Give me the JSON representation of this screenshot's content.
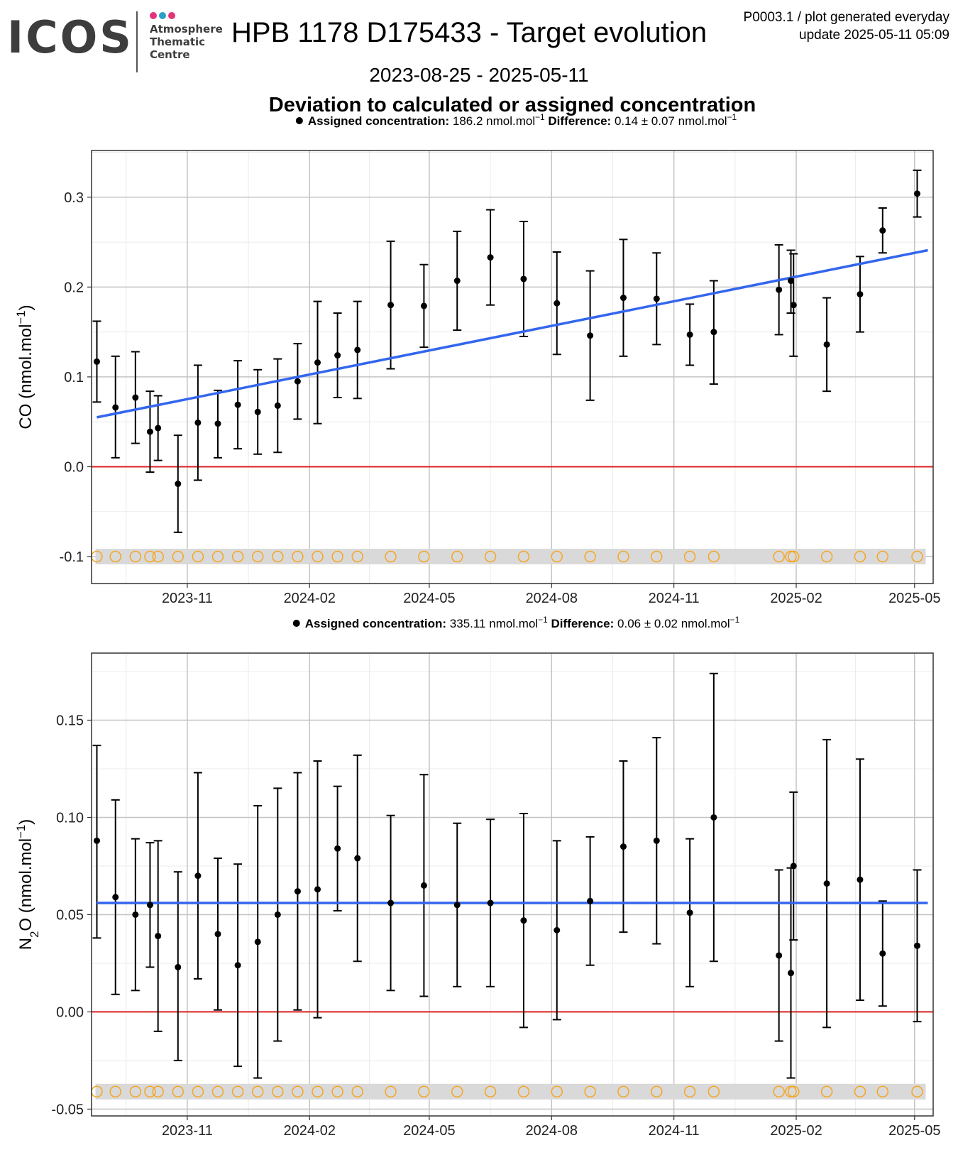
{
  "header": {
    "logo_text": "ICOS",
    "logo_sub": [
      "Atmosphere",
      "Thematic",
      "Centre"
    ],
    "logo_dot_colors": [
      "#e4337a",
      "#2b9ec9",
      "#e4337a"
    ],
    "title": "HPB 1178 D175433 - Target evolution",
    "meta_line1": "P0003.1 / plot generated everyday",
    "meta_line2": "update  2025-05-11 05:09",
    "date_range": "2023-08-25 - 2025-05-11",
    "subtitle": "Deviation to calculated or assigned concentration"
  },
  "colors": {
    "trend": "#3366ee",
    "zero_line": "#dd2222",
    "point": "#000000",
    "flag_circle": "#f5a623",
    "flag_band": "#d9d9d9",
    "grid_major": "#c4c4c4",
    "grid_minor": "#ebebeb"
  },
  "chart_data": [
    {
      "type": "scatter",
      "ylabel": "CO (nmol.mol⁻¹)",
      "legend": {
        "assigned_label": "Assigned concentration:",
        "assigned_value": "186.2 nmol.mol⁻¹",
        "difference_label": "Difference:",
        "difference_value": "0.14 ± 0.07 nmol.mol⁻¹"
      },
      "x_ticks": [
        "2023-11",
        "2024-02",
        "2024-05",
        "2024-08",
        "2024-11",
        "2025-02",
        "2025-05"
      ],
      "xlim": [
        "2023-08-21",
        "2025-05-15"
      ],
      "ylim": [
        -0.13,
        0.352
      ],
      "y_ticks": [
        0.3,
        0.2,
        0.1,
        0.0,
        -0.1
      ],
      "y_tick_labels": [
        "0.3",
        "0.2",
        "0.1",
        "0.0",
        "-0.1"
      ],
      "trend": {
        "x": [
          "2023-08-25",
          "2025-05-11"
        ],
        "y": [
          0.055,
          0.241
        ]
      },
      "flag_level": -0.1,
      "points": [
        {
          "x": "2023-08-25",
          "y": 0.117,
          "ylo": 0.072,
          "yhi": 0.162
        },
        {
          "x": "2023-09-08",
          "y": 0.066,
          "ylo": 0.01,
          "yhi": 0.123
        },
        {
          "x": "2023-09-23",
          "y": 0.077,
          "ylo": 0.026,
          "yhi": 0.128
        },
        {
          "x": "2023-10-04",
          "y": 0.039,
          "ylo": -0.006,
          "yhi": 0.084
        },
        {
          "x": "2023-10-10",
          "y": 0.043,
          "ylo": 0.007,
          "yhi": 0.079
        },
        {
          "x": "2023-10-25",
          "y": -0.019,
          "ylo": -0.073,
          "yhi": 0.035
        },
        {
          "x": "2023-11-09",
          "y": 0.049,
          "ylo": -0.015,
          "yhi": 0.113
        },
        {
          "x": "2023-11-24",
          "y": 0.048,
          "ylo": 0.01,
          "yhi": 0.085
        },
        {
          "x": "2023-12-09",
          "y": 0.069,
          "ylo": 0.02,
          "yhi": 0.118
        },
        {
          "x": "2023-12-24",
          "y": 0.061,
          "ylo": 0.014,
          "yhi": 0.108
        },
        {
          "x": "2024-01-08",
          "y": 0.068,
          "ylo": 0.016,
          "yhi": 0.12
        },
        {
          "x": "2024-01-23",
          "y": 0.095,
          "ylo": 0.053,
          "yhi": 0.137
        },
        {
          "x": "2024-02-07",
          "y": 0.116,
          "ylo": 0.048,
          "yhi": 0.184
        },
        {
          "x": "2024-02-22",
          "y": 0.124,
          "ylo": 0.077,
          "yhi": 0.171
        },
        {
          "x": "2024-03-08",
          "y": 0.13,
          "ylo": 0.076,
          "yhi": 0.184
        },
        {
          "x": "2024-04-02",
          "y": 0.18,
          "ylo": 0.109,
          "yhi": 0.251
        },
        {
          "x": "2024-04-27",
          "y": 0.179,
          "ylo": 0.133,
          "yhi": 0.225
        },
        {
          "x": "2024-05-22",
          "y": 0.207,
          "ylo": 0.152,
          "yhi": 0.262
        },
        {
          "x": "2024-06-16",
          "y": 0.233,
          "ylo": 0.18,
          "yhi": 0.286
        },
        {
          "x": "2024-07-11",
          "y": 0.209,
          "ylo": 0.145,
          "yhi": 0.273
        },
        {
          "x": "2024-08-05",
          "y": 0.182,
          "ylo": 0.125,
          "yhi": 0.239
        },
        {
          "x": "2024-08-30",
          "y": 0.146,
          "ylo": 0.074,
          "yhi": 0.218
        },
        {
          "x": "2024-09-24",
          "y": 0.188,
          "ylo": 0.123,
          "yhi": 0.253
        },
        {
          "x": "2024-10-19",
          "y": 0.187,
          "ylo": 0.136,
          "yhi": 0.238
        },
        {
          "x": "2024-11-13",
          "y": 0.147,
          "ylo": 0.113,
          "yhi": 0.181
        },
        {
          "x": "2024-12-01",
          "y": 0.15,
          "ylo": 0.092,
          "yhi": 0.207
        },
        {
          "x": "2025-01-19",
          "y": 0.197,
          "ylo": 0.147,
          "yhi": 0.247
        },
        {
          "x": "2025-01-28",
          "y": 0.207,
          "ylo": 0.171,
          "yhi": 0.241
        },
        {
          "x": "2025-01-30",
          "y": 0.18,
          "ylo": 0.123,
          "yhi": 0.237
        },
        {
          "x": "2025-02-24",
          "y": 0.136,
          "ylo": 0.084,
          "yhi": 0.188
        },
        {
          "x": "2025-03-21",
          "y": 0.192,
          "ylo": 0.15,
          "yhi": 0.234
        },
        {
          "x": "2025-04-07",
          "y": 0.263,
          "ylo": 0.238,
          "yhi": 0.288
        },
        {
          "x": "2025-05-03",
          "y": 0.304,
          "ylo": 0.278,
          "yhi": 0.33
        }
      ]
    },
    {
      "type": "scatter",
      "ylabel": "N₂O (nmol.mol⁻¹)",
      "legend": {
        "assigned_label": "Assigned concentration:",
        "assigned_value": "335.11 nmol.mol⁻¹",
        "difference_label": "Difference:",
        "difference_value": "0.06 ± 0.02 nmol.mol⁻¹"
      },
      "x_ticks": [
        "2023-11",
        "2024-02",
        "2024-05",
        "2024-08",
        "2024-11",
        "2025-02",
        "2025-05"
      ],
      "xlim": [
        "2023-08-21",
        "2025-05-15"
      ],
      "ylim": [
        -0.0535,
        0.1845
      ],
      "y_ticks": [
        0.15,
        0.1,
        0.05,
        0.0,
        -0.05
      ],
      "y_tick_labels": [
        "0.15",
        "0.10",
        "0.05",
        "0.00",
        "-0.05"
      ],
      "trend": {
        "x": [
          "2023-08-25",
          "2025-05-11"
        ],
        "y": [
          0.056,
          0.056
        ]
      },
      "flag_level": -0.041,
      "points": [
        {
          "x": "2023-08-25",
          "y": 0.088,
          "ylo": 0.038,
          "yhi": 0.137
        },
        {
          "x": "2023-09-08",
          "y": 0.059,
          "ylo": 0.009,
          "yhi": 0.109
        },
        {
          "x": "2023-09-23",
          "y": 0.05,
          "ylo": 0.011,
          "yhi": 0.089
        },
        {
          "x": "2023-10-04",
          "y": 0.055,
          "ylo": 0.023,
          "yhi": 0.087
        },
        {
          "x": "2023-10-10",
          "y": 0.039,
          "ylo": -0.01,
          "yhi": 0.088
        },
        {
          "x": "2023-10-25",
          "y": 0.023,
          "ylo": -0.025,
          "yhi": 0.072
        },
        {
          "x": "2023-11-09",
          "y": 0.07,
          "ylo": 0.017,
          "yhi": 0.123
        },
        {
          "x": "2023-11-24",
          "y": 0.04,
          "ylo": 0.001,
          "yhi": 0.079
        },
        {
          "x": "2023-12-09",
          "y": 0.024,
          "ylo": -0.028,
          "yhi": 0.076
        },
        {
          "x": "2023-12-24",
          "y": 0.036,
          "ylo": -0.034,
          "yhi": 0.106
        },
        {
          "x": "2024-01-08",
          "y": 0.05,
          "ylo": -0.015,
          "yhi": 0.115
        },
        {
          "x": "2024-01-23",
          "y": 0.062,
          "ylo": 0.001,
          "yhi": 0.123
        },
        {
          "x": "2024-02-07",
          "y": 0.063,
          "ylo": -0.003,
          "yhi": 0.129
        },
        {
          "x": "2024-02-22",
          "y": 0.084,
          "ylo": 0.052,
          "yhi": 0.116
        },
        {
          "x": "2024-03-08",
          "y": 0.079,
          "ylo": 0.026,
          "yhi": 0.132
        },
        {
          "x": "2024-04-02",
          "y": 0.056,
          "ylo": 0.011,
          "yhi": 0.101
        },
        {
          "x": "2024-04-27",
          "y": 0.065,
          "ylo": 0.008,
          "yhi": 0.122
        },
        {
          "x": "2024-05-22",
          "y": 0.055,
          "ylo": 0.013,
          "yhi": 0.097
        },
        {
          "x": "2024-06-16",
          "y": 0.056,
          "ylo": 0.013,
          "yhi": 0.099
        },
        {
          "x": "2024-07-11",
          "y": 0.047,
          "ylo": -0.008,
          "yhi": 0.102
        },
        {
          "x": "2024-08-05",
          "y": 0.042,
          "ylo": -0.004,
          "yhi": 0.088
        },
        {
          "x": "2024-08-30",
          "y": 0.057,
          "ylo": 0.024,
          "yhi": 0.09
        },
        {
          "x": "2024-09-24",
          "y": 0.085,
          "ylo": 0.041,
          "yhi": 0.129
        },
        {
          "x": "2024-10-19",
          "y": 0.088,
          "ylo": 0.035,
          "yhi": 0.141
        },
        {
          "x": "2024-11-13",
          "y": 0.051,
          "ylo": 0.013,
          "yhi": 0.089
        },
        {
          "x": "2024-12-01",
          "y": 0.1,
          "ylo": 0.026,
          "yhi": 0.174
        },
        {
          "x": "2025-01-19",
          "y": 0.029,
          "ylo": -0.015,
          "yhi": 0.073
        },
        {
          "x": "2025-01-28",
          "y": 0.02,
          "ylo": -0.034,
          "yhi": 0.074
        },
        {
          "x": "2025-01-30",
          "y": 0.075,
          "ylo": 0.037,
          "yhi": 0.113
        },
        {
          "x": "2025-02-24",
          "y": 0.066,
          "ylo": -0.008,
          "yhi": 0.14
        },
        {
          "x": "2025-03-21",
          "y": 0.068,
          "ylo": 0.006,
          "yhi": 0.13
        },
        {
          "x": "2025-04-07",
          "y": 0.03,
          "ylo": 0.003,
          "yhi": 0.057
        },
        {
          "x": "2025-05-03",
          "y": 0.034,
          "ylo": -0.005,
          "yhi": 0.073
        }
      ]
    }
  ]
}
